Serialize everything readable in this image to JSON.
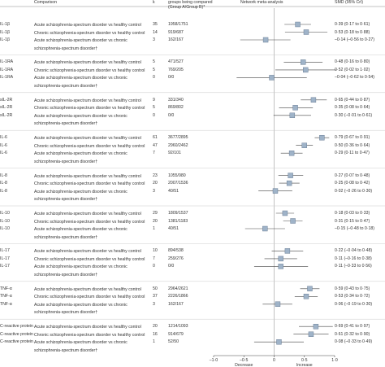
{
  "header": {
    "comparison": "Comparison",
    "k": "k",
    "participants": "Number of participants in groups being compared (Group A/Group B)*",
    "plot": "Network meta-analysis",
    "smd": "SMD (95% CrI)"
  },
  "axis": {
    "xlim": [
      -1,
      1
    ],
    "ticks": [
      {
        "value": -1,
        "label": "–1·0"
      },
      {
        "value": -0.5,
        "label": "–0·5"
      },
      0,
      {
        "value": 0.5,
        "label": "0·5"
      },
      {
        "value": 1,
        "label": "1·0"
      }
    ],
    "left": "Decrease",
    "right": "Increase"
  },
  "groups": [
    {
      "marker": "IL-1β",
      "rows": [
        {
          "comparison": "Acute schizophrenia-spectrum disorder vs healthy control",
          "k": 35,
          "n": "1958/1751",
          "est": 0.39,
          "lo": 0.17,
          "hi": 0.61,
          "smd": "0·39 (0·17 to 0·61)"
        },
        {
          "comparison": "Chronic schizophrenia-spectrum disorder vs healthy control",
          "k": 14,
          "n": "919/687",
          "est": 0.53,
          "lo": 0.18,
          "hi": 0.88,
          "smd": "0·53 (0·18 to 0·88)"
        },
        {
          "comparison": "Acute schizophrenia-spectrum disorder vs chronic schizophrenia-spectrum disorder†",
          "k": 3,
          "n": "162/167",
          "est": -0.14,
          "lo": -0.56,
          "hi": 0.27,
          "smd": "–0·14 (–0·56 to 0·27)"
        }
      ]
    },
    {
      "marker": "IL-1RA",
      "rows": [
        {
          "comparison": "Acute schizophrenia-spectrum disorder vs healthy control",
          "k": 5,
          "n": "471/527",
          "est": 0.48,
          "lo": 0.16,
          "hi": 0.8,
          "smd": "0·48 (0·16 to 0·80)"
        },
        {
          "comparison": "Chronic schizophrenia-spectrum disorder vs healthy control",
          "k": 5,
          "n": "769/205",
          "est": 0.52,
          "lo": 0.02,
          "hi": 1.02,
          "smd": "0·52 (0·02 to 1·02)"
        },
        {
          "comparison": "Acute schizophrenia-spectrum disorder vs chronic schizophrenia-spectrum disorder†",
          "k": 0,
          "n": "0/0",
          "est": -0.04,
          "lo": -0.62,
          "hi": 0.54,
          "smd": "–0·04 (–0·62 to 0·54)"
        }
      ]
    },
    {
      "marker": "sIL-2R",
      "rows": [
        {
          "comparison": "Acute schizophrenia-spectrum disorder vs healthy control",
          "k": 9,
          "n": "331/340",
          "est": 0.65,
          "lo": 0.44,
          "hi": 0.87,
          "smd": "0·65 (0·44 to 0·87)"
        },
        {
          "comparison": "Chronic schizophrenia-spectrum disorder vs healthy control",
          "k": 5,
          "n": "869/802",
          "est": 0.35,
          "lo": 0.08,
          "hi": 0.64,
          "smd": "0·35 (0·08 to 0·64)"
        },
        {
          "comparison": "Acute schizophrenia-spectrum disorder vs chronic schizophrenia-spectrum disorder†",
          "k": 0,
          "n": "0/0",
          "est": 0.3,
          "lo": -0.01,
          "hi": 0.61,
          "smd": "0·30 (–0·01 to 0·61)"
        }
      ]
    },
    {
      "marker": "IL-6",
      "rows": [
        {
          "comparison": "Acute schizophrenia-spectrum disorder vs healthy control",
          "k": 61,
          "n": "3677/2895",
          "est": 0.79,
          "lo": 0.67,
          "hi": 0.91,
          "smd": "0·79 (0·67 to 0·91)"
        },
        {
          "comparison": "Chronic schizophrenia-spectrum disorder vs healthy control",
          "k": 47,
          "n": "2960/2462",
          "est": 0.5,
          "lo": 0.36,
          "hi": 0.64,
          "smd": "0·50 (0·36 to 0·64)"
        },
        {
          "comparison": "Acute schizophrenia-spectrum disorder vs chronic schizophrenia-spectrum disorder†",
          "k": 7,
          "n": "92/101",
          "est": 0.29,
          "lo": 0.11,
          "hi": 0.47,
          "smd": "0·29 (0·11 to 0·47)"
        }
      ]
    },
    {
      "marker": "IL-8",
      "rows": [
        {
          "comparison": "Acute schizophrenia-spectrum disorder vs healthy control",
          "k": 23,
          "n": "1055/980",
          "est": 0.27,
          "lo": 0.07,
          "hi": 0.48,
          "smd": "0·27 (0·07 to 0·48)"
        },
        {
          "comparison": "Chronic schizophrenia-spectrum disorder vs healthy control",
          "k": 20,
          "n": "2007/1536",
          "est": 0.25,
          "lo": 0.08,
          "hi": 0.42,
          "smd": "0·25 (0·08 to 0·42)"
        },
        {
          "comparison": "Acute schizophrenia-spectrum disorder vs chronic schizophrenia-spectrum disorder†",
          "k": 3,
          "n": "40/51",
          "est": 0.02,
          "lo": -0.26,
          "hi": 0.3,
          "smd": "0·02 (–0·26 to 0·30)"
        }
      ]
    },
    {
      "marker": "IL-10",
      "rows": [
        {
          "comparison": "Acute schizophrenia-spectrum disorder vs healthy control",
          "k": 29,
          "n": "1809/1537",
          "est": 0.18,
          "lo": 0.03,
          "hi": 0.33,
          "smd": "0·18 (0·03 to 0·33)"
        },
        {
          "comparison": "Chronic schizophrenia-spectrum disorder vs healthy control",
          "k": 20,
          "n": "1381/1183",
          "est": 0.31,
          "lo": 0.15,
          "hi": 0.47,
          "smd": "0·31 (0·15 to 0·47)"
        },
        {
          "comparison": "Acute schizophrenia-spectrum disorder vs chronic schizophrenia-spectrum disorder†",
          "k": 1,
          "n": "40/51",
          "est": -0.15,
          "lo": -0.48,
          "hi": 0.18,
          "smd": "–0·15 (–0·48 to 0·18)"
        }
      ]
    },
    {
      "marker": "IL-17",
      "rows": [
        {
          "comparison": "Acute schizophrenia-spectrum disorder vs healthy control",
          "k": 10,
          "n": "894/538",
          "est": 0.22,
          "lo": -0.04,
          "hi": 0.48,
          "smd": "0·22 (–0·04 to 0·48)"
        },
        {
          "comparison": "Chronic schizophrenia-spectrum disorder vs healthy control",
          "k": 7,
          "n": "259/276",
          "est": 0.11,
          "lo": -0.16,
          "hi": 0.38,
          "smd": "0·11 (–0·16 to 0·38)"
        },
        {
          "comparison": "Acute schizophrenia-spectrum disorder vs chronic schizophrenia-spectrum disorder†",
          "k": 0,
          "n": "0/0",
          "est": 0.11,
          "lo": -0.33,
          "hi": 0.56,
          "smd": "0·11 (–0·33 to 0·56)"
        }
      ]
    },
    {
      "marker": "TNF-α",
      "rows": [
        {
          "comparison": "Acute schizophrenia-spectrum disorder vs healthy control",
          "k": 50,
          "n": "2964/2621",
          "est": 0.59,
          "lo": 0.43,
          "hi": 0.75,
          "smd": "0·59 (0·43 to 0·75)"
        },
        {
          "comparison": "Chronic schizophrenia-spectrum disorder vs healthy control",
          "k": 37,
          "n": "2226/1866",
          "est": 0.53,
          "lo": 0.34,
          "hi": 0.72,
          "smd": "0·53 (0·34 to 0·72)"
        },
        {
          "comparison": "Acute schizophrenia-spectrum disorder vs chronic schizophrenia-spectrum disorder†",
          "k": 3,
          "n": "162/167",
          "est": 0.06,
          "lo": -0.19,
          "hi": 0.3,
          "smd": "0·06 (–0·19 to 0·30)"
        }
      ]
    },
    {
      "marker": "C-reactive protein",
      "rows": [
        {
          "comparison": "Acute schizophrenia-spectrum disorder vs healthy control",
          "k": 20,
          "n": "1214/1093",
          "est": 0.69,
          "lo": 0.41,
          "hi": 0.97,
          "smd": "0·69 (0·41 to 0·97)"
        },
        {
          "comparison": "Chronic schizophrenia-spectrum disorder vs healthy control",
          "k": 16,
          "n": "914/679",
          "est": 0.61,
          "lo": 0.32,
          "hi": 0.9,
          "smd": "0·61 (0·32 to 0·90)"
        },
        {
          "comparison": "Acute schizophrenia-spectrum disorder vs chronic schizophrenia-spectrum disorder†",
          "k": 1,
          "n": "52/50",
          "est": 0.08,
          "lo": -0.33,
          "hi": 0.49,
          "smd": "0·08 (–0·33 to 0·49)"
        }
      ]
    }
  ]
}
